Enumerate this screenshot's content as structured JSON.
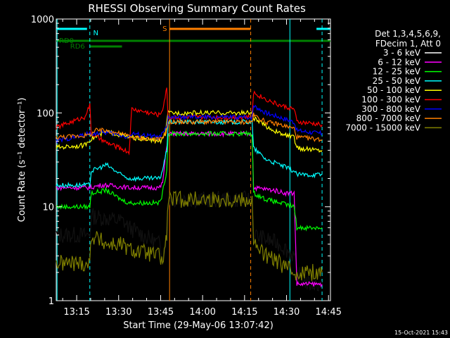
{
  "chart_data": {
    "type": "line",
    "title": "RHESSI Observing Summary Count Rates",
    "xlabel": "Start Time (29-May-06 13:07:42)",
    "ylabel": "Count Rate (s⁻¹ detector⁻¹)",
    "ylog": true,
    "ylim": [
      1,
      1000
    ],
    "xlim_minutes": [
      0,
      98
    ],
    "x_ticks": [
      {
        "min": 7.3,
        "label": "13:15"
      },
      {
        "min": 22.3,
        "label": "13:30"
      },
      {
        "min": 37.3,
        "label": "13:45"
      },
      {
        "min": 52.3,
        "label": "14:00"
      },
      {
        "min": 67.3,
        "label": "14:15"
      },
      {
        "min": 82.3,
        "label": "14:30"
      },
      {
        "min": 97.3,
        "label": "14:45"
      }
    ],
    "y_ticks": [
      {
        "v": 1,
        "label": "1"
      },
      {
        "v": 10,
        "label": "10"
      },
      {
        "v": 100,
        "label": "100"
      },
      {
        "v": 1000,
        "label": "1000"
      }
    ],
    "legend_header": [
      "Det 1,3,4,5,6,9,",
      "FDecim 1, Att 0"
    ],
    "legend_position": "right",
    "timestamp": "15-Oct-2021 15:43",
    "series": [
      {
        "name": "3 - 6 keV",
        "color": "#000000",
        "points": [
          [
            0,
            5
          ],
          [
            12,
            5
          ],
          [
            12.5,
            8
          ],
          [
            24,
            7
          ],
          [
            26,
            6
          ],
          [
            37,
            4
          ],
          [
            38.5,
            3
          ],
          [
            39.5,
            6
          ],
          [
            40,
            12
          ],
          [
            70,
            12
          ],
          [
            70.5,
            5
          ],
          [
            80,
            4
          ],
          [
            85,
            3
          ],
          [
            86,
            2
          ],
          [
            90,
            1.5
          ],
          [
            95,
            1.5
          ]
        ]
      },
      {
        "name": "6 - 12 keV",
        "color": "#ff00ff",
        "points": [
          [
            0,
            16
          ],
          [
            12,
            16
          ],
          [
            16,
            17
          ],
          [
            18,
            17
          ],
          [
            26,
            16
          ],
          [
            37,
            16
          ],
          [
            38,
            18
          ],
          [
            40,
            60
          ],
          [
            70,
            60
          ],
          [
            70.5,
            16
          ],
          [
            78,
            15
          ],
          [
            82,
            14
          ],
          [
            85,
            14
          ],
          [
            86,
            1.5
          ],
          [
            90,
            1.5
          ],
          [
            95,
            1.5
          ]
        ]
      },
      {
        "name": "12 - 25 keV",
        "color": "#00ff00",
        "points": [
          [
            0,
            10
          ],
          [
            12,
            10
          ],
          [
            12.5,
            14
          ],
          [
            18,
            15
          ],
          [
            23,
            12
          ],
          [
            26,
            11
          ],
          [
            37,
            11
          ],
          [
            38,
            14
          ],
          [
            39.5,
            25
          ],
          [
            40,
            60
          ],
          [
            70,
            60
          ],
          [
            70.5,
            14
          ],
          [
            75,
            12
          ],
          [
            80,
            11
          ],
          [
            85,
            10
          ],
          [
            86,
            6
          ],
          [
            95,
            6
          ]
        ]
      },
      {
        "name": "25 - 50 keV",
        "color": "#00ffff",
        "points": [
          [
            0,
            17
          ],
          [
            12,
            17
          ],
          [
            12.5,
            24
          ],
          [
            18,
            28
          ],
          [
            23,
            22
          ],
          [
            26,
            20
          ],
          [
            37,
            20
          ],
          [
            38,
            25
          ],
          [
            39.5,
            40
          ],
          [
            40,
            80
          ],
          [
            70,
            80
          ],
          [
            70.5,
            42
          ],
          [
            75,
            32
          ],
          [
            80,
            28
          ],
          [
            85,
            24
          ],
          [
            86,
            22
          ],
          [
            95,
            22
          ]
        ]
      },
      {
        "name": "50 - 100 keV",
        "color": "#ffff00",
        "points": [
          [
            0,
            43
          ],
          [
            10,
            45
          ],
          [
            12,
            52
          ],
          [
            18,
            63
          ],
          [
            23,
            58
          ],
          [
            26,
            55
          ],
          [
            37,
            50
          ],
          [
            38,
            52
          ],
          [
            39,
            60
          ],
          [
            40,
            100
          ],
          [
            70,
            100
          ],
          [
            70.5,
            88
          ],
          [
            75,
            72
          ],
          [
            80,
            60
          ],
          [
            85,
            55
          ],
          [
            86,
            42
          ],
          [
            95,
            40
          ]
        ]
      },
      {
        "name": "100 - 300 keV",
        "color": "#ff0000",
        "points": [
          [
            0,
            70
          ],
          [
            10,
            90
          ],
          [
            12,
            120
          ],
          [
            12.5,
            60
          ],
          [
            18,
            48
          ],
          [
            23,
            42
          ],
          [
            26,
            38
          ],
          [
            27,
            110
          ],
          [
            37,
            95
          ],
          [
            38,
            110
          ],
          [
            39.5,
            180
          ],
          [
            40,
            90
          ],
          [
            70,
            90
          ],
          [
            70.5,
            165
          ],
          [
            75,
            140
          ],
          [
            80,
            120
          ],
          [
            85,
            110
          ],
          [
            86,
            80
          ],
          [
            95,
            75
          ]
        ]
      },
      {
        "name": "300 - 800 keV",
        "color": "#0000ff",
        "points": [
          [
            0,
            50
          ],
          [
            12,
            60
          ],
          [
            18,
            62
          ],
          [
            23,
            58
          ],
          [
            26,
            55
          ],
          [
            27,
            60
          ],
          [
            37,
            55
          ],
          [
            38,
            60
          ],
          [
            39.5,
            70
          ],
          [
            40,
            90
          ],
          [
            70,
            90
          ],
          [
            70.5,
            120
          ],
          [
            75,
            100
          ],
          [
            80,
            90
          ],
          [
            85,
            80
          ],
          [
            86,
            65
          ],
          [
            95,
            60
          ]
        ]
      },
      {
        "name": "800 - 7000 keV",
        "color": "#ff7f00",
        "points": [
          [
            0,
            55
          ],
          [
            12,
            58
          ],
          [
            14,
            65
          ],
          [
            18,
            65
          ],
          [
            23,
            60
          ],
          [
            26,
            57
          ],
          [
            27,
            55
          ],
          [
            37,
            52
          ],
          [
            38,
            55
          ],
          [
            39.5,
            65
          ],
          [
            40,
            80
          ],
          [
            70,
            80
          ],
          [
            70.5,
            95
          ],
          [
            75,
            80
          ],
          [
            80,
            75
          ],
          [
            85,
            68
          ],
          [
            86,
            55
          ],
          [
            95,
            52
          ]
        ]
      },
      {
        "name": "7000 - 15000 keV",
        "color": "#808000",
        "points": [
          [
            0,
            2.5
          ],
          [
            12,
            2.5
          ],
          [
            12.5,
            5
          ],
          [
            18,
            4
          ],
          [
            23,
            4
          ],
          [
            26,
            3.5
          ],
          [
            37,
            3
          ],
          [
            38,
            2.5
          ],
          [
            39.5,
            5
          ],
          [
            40,
            12
          ],
          [
            70,
            12
          ],
          [
            70.5,
            4
          ],
          [
            75,
            3
          ],
          [
            80,
            2.5
          ],
          [
            85,
            2
          ],
          [
            86,
            2
          ],
          [
            95,
            2
          ]
        ]
      }
    ],
    "flag_bars": [
      {
        "label": "",
        "color": "#00ffff",
        "segments": [
          [
            0,
            11
          ],
          [
            93,
            98
          ]
        ],
        "level": "top"
      },
      {
        "label": "N",
        "color": "#00ffff",
        "segments": [
          [
            12.2,
            12.2
          ]
        ],
        "level": "top"
      },
      {
        "label": "RD0",
        "color": "#008000",
        "segments": [
          [
            0,
            98
          ]
        ],
        "level": "mid"
      },
      {
        "label": "RD6",
        "color": "#008000",
        "segments": [
          [
            12,
            23.5
          ]
        ],
        "level": "low"
      },
      {
        "label": "S",
        "color": "#ff7f00",
        "segments": [
          [
            40.5,
            69.5
          ]
        ],
        "level": "top"
      }
    ],
    "vertical_lines": [
      {
        "min": 0.3,
        "color": "#00ffff",
        "dash": false
      },
      {
        "min": 12.0,
        "color": "#00ffff",
        "dash": true
      },
      {
        "min": 40.5,
        "color": "#ff7f00",
        "dash": false
      },
      {
        "min": 69.5,
        "color": "#ff7f00",
        "dash": true
      },
      {
        "min": 83.5,
        "color": "#00ffff",
        "dash": false
      },
      {
        "min": 95.0,
        "color": "#00ffff",
        "dash": true
      }
    ]
  }
}
